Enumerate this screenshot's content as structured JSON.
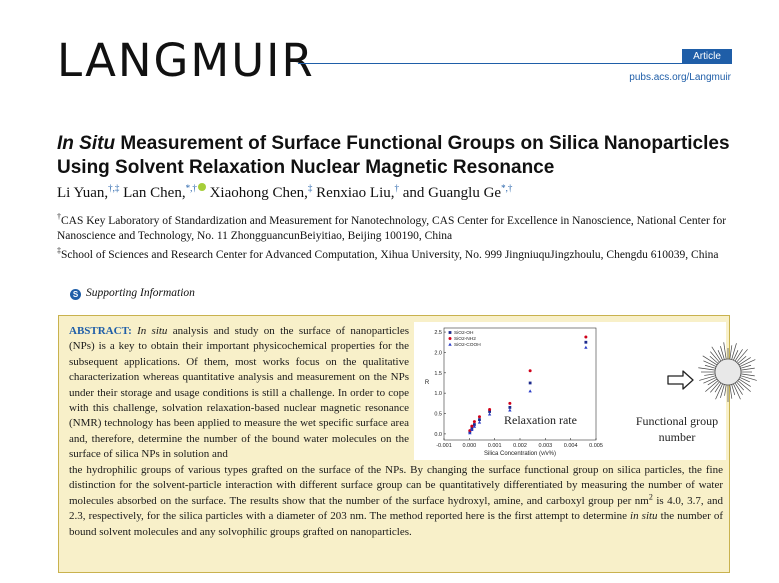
{
  "header": {
    "journal": "LANGMUIR",
    "badge": "Article",
    "url": "pubs.acs.org/Langmuir"
  },
  "title": {
    "italic_part": "In Situ",
    "rest": " Measurement of Surface Functional Groups on Silica Nanoparticles Using Solvent Relaxation Nuclear Magnetic Resonance"
  },
  "authors": [
    {
      "name": "Li Yuan,",
      "marks": "†,‡"
    },
    {
      "name": "Lan Chen,",
      "marks": "*,†"
    },
    {
      "name": "Xiaohong Chen,",
      "marks": "‡"
    },
    {
      "name": "Renxiao Liu,",
      "marks": "†"
    },
    {
      "name": "and Guanglu Ge",
      "marks": "*,†"
    }
  ],
  "affiliations": [
    {
      "mark": "†",
      "text": "CAS Key Laboratory of Standardization and Measurement for Nanotechnology, CAS Center for Excellence in Nanoscience, National Center for Nanoscience and Technology, No. 11 ZhongguancunBeiyitiao, Beijing 100190, China"
    },
    {
      "mark": "‡",
      "text": "School of Sciences and Research Center for Advanced Computation, Xihua University, No. 999 JingniuquJingzhoulu, Chengdu 610039, China"
    }
  ],
  "supporting_info": {
    "icon": "S",
    "label": "Supporting Information"
  },
  "abstract": {
    "head": "ABSTRACT:",
    "italic_lead": "In situ",
    "text_top": " analysis and study on the surface of nanoparticles (NPs) is a key to obtain their important physicochemical properties for the subsequent applications. Of them, most works focus on the qualitative characterization whereas quantitative analysis and measurement on the NPs under their storage and usage conditions is still a challenge. In order to cope with this challenge, solvation relaxation-based nuclear magnetic resonance (NMR) technology has been applied to measure the wet specific surface area and, therefore, determine the number of the bound water molecules on the surface of silica NPs in solution and",
    "text_bottom_1": "the hydrophilic groups of various types grafted on the surface of the NPs. By changing the surface functional group on silica particles, the fine distinction for the solvent-particle interaction with different surface group can be quantitatively differentiated by measuring the number of water molecules absorbed on the surface. The results show that the number of the surface hydroxyl, amine, and carboxyl group per nm",
    "superscript": "2",
    "text_bottom_2": " is 4.0, 3.7, and 2.3, respectively, for the silica particles with a diameter of 203 nm. The method reported here is the first attempt to determine ",
    "italic_mid": "in situ",
    "text_bottom_3": " the number of bound solvent molecules and any solvophilic groups grafted on nanoparticles."
  },
  "toc_graphic": {
    "relax_label": "Relaxation rate",
    "fg_label": "Functional group number",
    "arrow_icon": "right-arrow-icon",
    "particle_icon": "spiky-nanoparticle-icon"
  },
  "chart_data": {
    "type": "scatter",
    "xlabel": "Silica Concentration (v/v%)",
    "ylabel": "R",
    "xlim": [
      -0.001,
      0.005
    ],
    "ylim": [
      -0.15,
      2.6
    ],
    "xticks": [
      "-0.001",
      "0.000",
      "0.001",
      "0.002",
      "0.003",
      "0.004",
      "0.005"
    ],
    "yticks": [
      "0.0",
      "0.5",
      "1.0",
      "1.5",
      "2.0",
      "2.5"
    ],
    "legend_position": "top-left",
    "series": [
      {
        "name": "SiO2-OH",
        "marker": "square",
        "color": "#1c2a8c",
        "points": [
          [
            2e-05,
            0.05
          ],
          [
            0.0001,
            0.13
          ],
          [
            0.0002,
            0.23
          ],
          [
            0.0004,
            0.35
          ],
          [
            0.0008,
            0.55
          ],
          [
            0.0016,
            0.65
          ],
          [
            0.0024,
            1.25
          ],
          [
            0.0046,
            2.25
          ]
        ]
      },
      {
        "name": "SiO2-NH2",
        "marker": "circle",
        "color": "#d0021b",
        "points": [
          [
            2e-05,
            0.08
          ],
          [
            0.0001,
            0.19
          ],
          [
            0.0002,
            0.3
          ],
          [
            0.0004,
            0.42
          ],
          [
            0.0008,
            0.6
          ],
          [
            0.0016,
            0.75
          ],
          [
            0.0024,
            1.55
          ],
          [
            0.0046,
            2.38
          ]
        ]
      },
      {
        "name": "SiO2-COOH",
        "marker": "triangle",
        "color": "#2a3cc7",
        "points": [
          [
            2e-05,
            0.02
          ],
          [
            0.0001,
            0.1
          ],
          [
            0.0002,
            0.18
          ],
          [
            0.0004,
            0.28
          ],
          [
            0.0008,
            0.48
          ],
          [
            0.0016,
            0.58
          ],
          [
            0.0024,
            1.05
          ],
          [
            0.0046,
            2.12
          ]
        ]
      }
    ]
  }
}
